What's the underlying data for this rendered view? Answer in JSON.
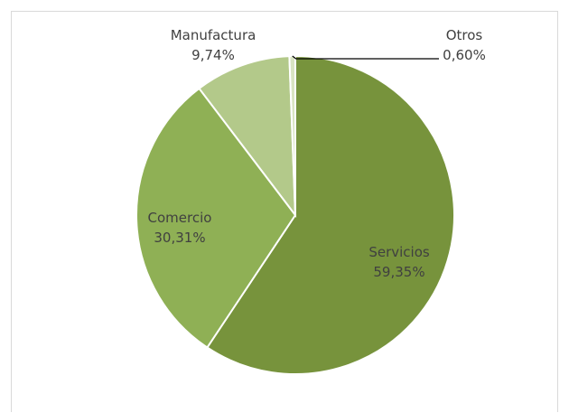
{
  "chart_data": {
    "type": "pie",
    "title": "",
    "slices": [
      {
        "name": "Servicios",
        "value": 59.35,
        "label": "Servicios",
        "pct_label": "59,35%",
        "color": "#77933c"
      },
      {
        "name": "Comercio",
        "value": 30.31,
        "label": "Comercio",
        "pct_label": "30,31%",
        "color": "#8fb055"
      },
      {
        "name": "Manufactura",
        "value": 9.74,
        "label": "Manufactura",
        "pct_label": "9,74%",
        "color": "#b3c98a"
      },
      {
        "name": "Otros",
        "value": 0.6,
        "label": "Otros",
        "pct_label": "0,60%",
        "color": "#d9e4c2"
      }
    ],
    "start_angle_deg": 0,
    "direction": "clockwise",
    "legend": "none",
    "slice_border_color": "#ffffff"
  }
}
